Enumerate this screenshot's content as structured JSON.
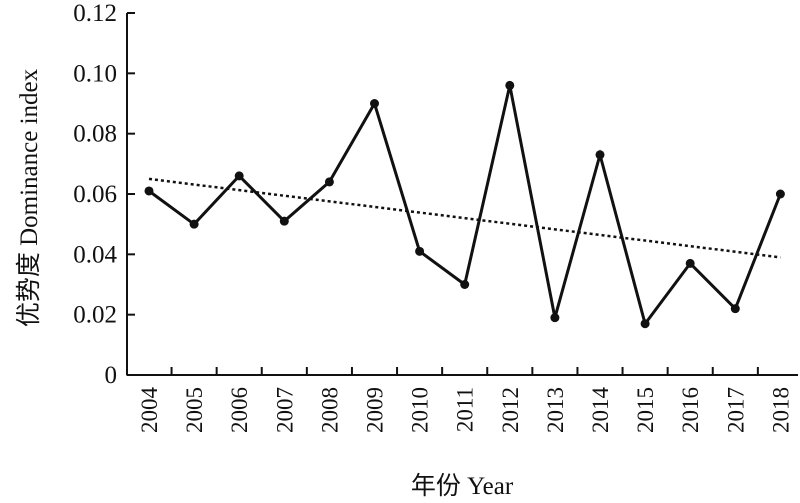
{
  "chart_data": {
    "type": "line",
    "xlabel": "年份 Year",
    "ylabel": "优势度 Dominance index",
    "ylim": [
      0,
      0.12
    ],
    "yticks": [
      "0",
      "0.02",
      "0.04",
      "0.06",
      "0.08",
      "0.10",
      "0.12"
    ],
    "x": [
      "2004",
      "2005",
      "2006",
      "2007",
      "2008",
      "2009",
      "2010",
      "2011",
      "2012",
      "2013",
      "2014",
      "2015",
      "2016",
      "2017",
      "2018"
    ],
    "series": [
      {
        "values": [
          0.061,
          0.05,
          0.066,
          0.051,
          0.064,
          0.09,
          0.041,
          0.03,
          0.096,
          0.019,
          0.073,
          0.017,
          0.037,
          0.022,
          0.06
        ]
      }
    ],
    "trendline": {
      "style": "dotted",
      "start": 0.065,
      "end": 0.039
    },
    "grid": false,
    "colors": {
      "line": "#111111",
      "trend": "#111111"
    }
  }
}
